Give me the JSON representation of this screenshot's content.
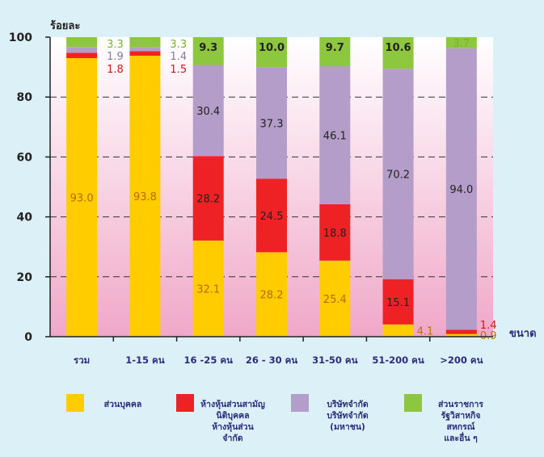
{
  "chart_data": {
    "type": "bar",
    "stacked": true,
    "ylabel": "ร้อยละ",
    "xlabel": "ขนาด",
    "ylim": [
      0,
      100
    ],
    "yticks": [
      0,
      20,
      40,
      60,
      80,
      100
    ],
    "categories": [
      "รวม",
      "1-15 คน",
      "16 -25 คน",
      "26 - 30 คน",
      "31-50 คน",
      "51-200 คน",
      ">200 คน"
    ],
    "series": [
      {
        "name": "ส่วนบุคคล",
        "color": "#ffcc00",
        "label_color": "#c07000",
        "values": [
          93.0,
          93.8,
          32.1,
          28.2,
          25.4,
          4.1,
          0.9
        ],
        "labels": [
          "93.0",
          "93.8",
          "32.1",
          "28.2",
          "25.4",
          "4.1",
          "0.9"
        ]
      },
      {
        "name": "ห้างหุ้นส่วนสามัญนิติบุคคล ห้างหุ้นส่วนจำกัด",
        "color": "#ee2224",
        "label_color": "#d0181c",
        "values": [
          1.8,
          1.5,
          28.2,
          24.5,
          18.8,
          15.1,
          1.4
        ],
        "labels": [
          "1.8",
          "1.5",
          "28.2",
          "24.5",
          "18.8",
          "15.1",
          "1.4"
        ]
      },
      {
        "name": "บริษัทจำกัด บริษัทจำกัด (มหาชน)",
        "color": "#b49dc8",
        "label_color": "#8a7a9a",
        "values": [
          1.9,
          1.4,
          30.4,
          37.3,
          46.1,
          70.2,
          94.0
        ],
        "labels": [
          "1.9",
          "1.4",
          "30.4",
          "37.3",
          "46.1",
          "70.2",
          "94.0"
        ]
      },
      {
        "name": "ส่วนราชการ รัฐวิสาหกิจ สหกรณ์ และอื่น ๆ",
        "color": "#8dc63f",
        "label_color": "#7ab030",
        "values": [
          3.3,
          3.3,
          9.3,
          10.0,
          9.7,
          10.6,
          3.7
        ],
        "labels": [
          "3.3",
          "3.3",
          "9.3",
          "10.0",
          "9.7",
          "10.6",
          "3.7"
        ]
      }
    ],
    "legend": [
      {
        "lines": [
          "ส่วนบุคคล"
        ]
      },
      {
        "lines": [
          "ห้างหุ้นส่วนสามัญ",
          "นิติบุคคล",
          "ห้างหุ้นส่วน",
          "จำกัด"
        ]
      },
      {
        "lines": [
          "บริษัทจำกัด",
          "บริษัทจำกัด",
          "(มหาชน)"
        ]
      },
      {
        "lines": [
          "ส่วนราชการ",
          "รัฐวิสาหกิจ",
          "สหกรณ์",
          "และอื่น ๆ"
        ]
      }
    ],
    "legend_position": "bottom",
    "grid": true,
    "colors": {
      "background": "#dcf0f7",
      "plot_top": "#ffffff",
      "plot_bottom": "#f0a8c8",
      "axis": "#222222",
      "category_text": "#2b2b7a"
    }
  }
}
